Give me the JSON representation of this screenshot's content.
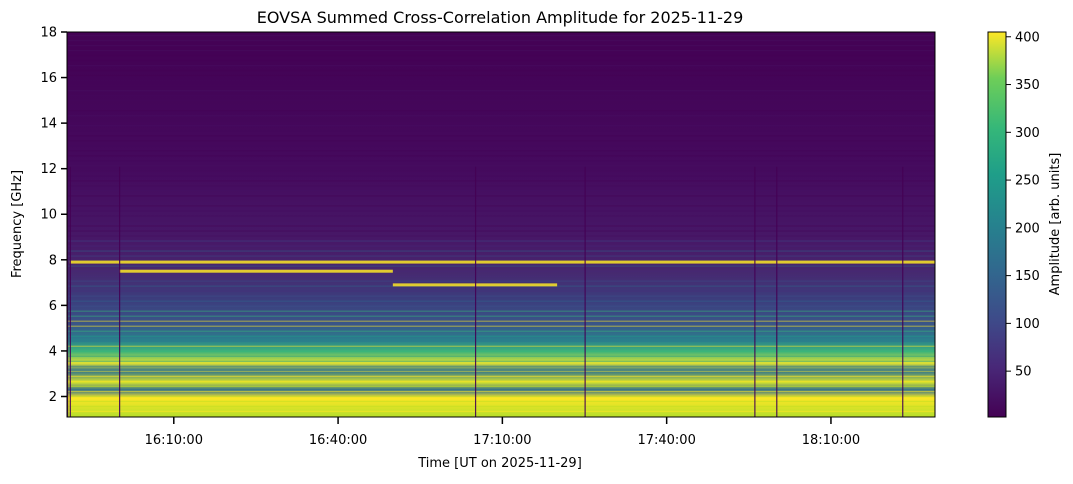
{
  "chart_data": {
    "type": "heatmap",
    "title": "EOVSA Summed Cross-Correlation Amplitude for 2025-11-29",
    "xlabel": "Time [UT on 2025-11-29]",
    "ylabel": "Frequency [GHz]",
    "x_ticks": [
      "16:10:00",
      "16:40:00",
      "17:10:00",
      "17:40:00",
      "18:10:00"
    ],
    "x_range": [
      "15:50:30",
      "18:29:00"
    ],
    "y_ticks": [
      2,
      4,
      6,
      8,
      10,
      12,
      14,
      16,
      18
    ],
    "ylim": [
      1.1,
      18
    ],
    "colorbar": {
      "label": "Amplitude [arb. units]",
      "ticks": [
        50,
        100,
        150,
        200,
        250,
        300,
        350,
        400
      ],
      "range": [
        2,
        405
      ],
      "colormap": "viridis"
    },
    "bright_features": [
      {
        "description_freq_ghz": 7.9,
        "t_start": "15:51:00",
        "t_end": "18:29:00"
      },
      {
        "description_freq_ghz": 7.5,
        "t_start": "16:00:00",
        "t_end": "16:50:00"
      },
      {
        "description_freq_ghz": 6.9,
        "t_start": "16:50:00",
        "t_end": "17:20:00"
      }
    ],
    "grid": false
  }
}
